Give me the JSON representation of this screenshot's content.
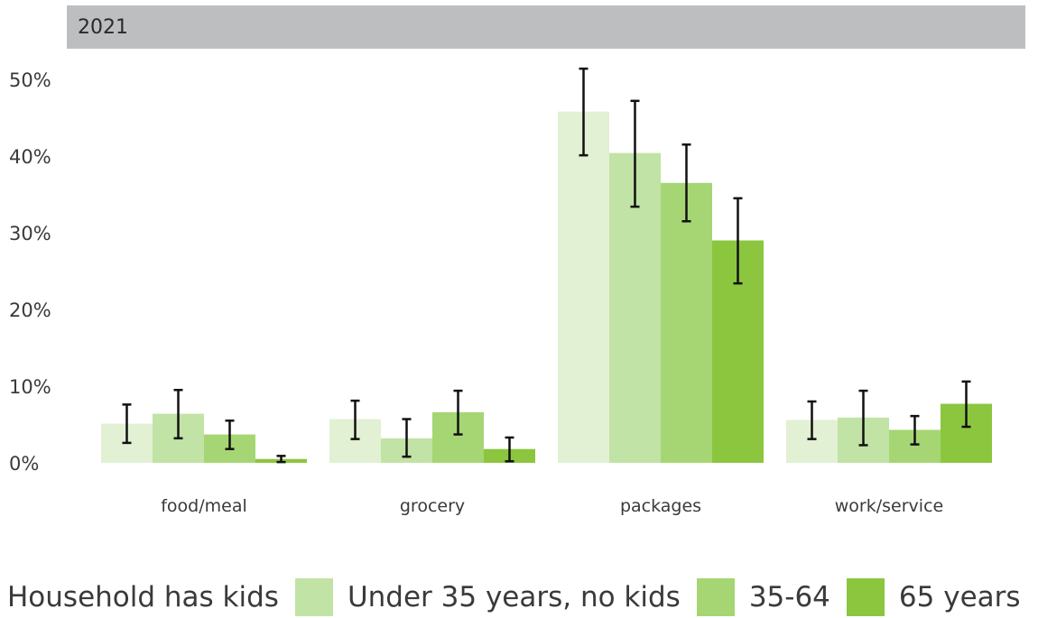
{
  "panel": {
    "title": "2021"
  },
  "legend": {
    "first_label": "Household has kids",
    "items": [
      {
        "label": "Under 35 years, no kids",
        "color": "#c1e3a5"
      },
      {
        "label": "35-64",
        "color": "#a6d673"
      },
      {
        "label": "65 years",
        "color": "#8cc63f"
      }
    ]
  },
  "chart_data": {
    "type": "bar",
    "title": "2021",
    "categories": [
      "food/meal",
      "grocery",
      "packages",
      "work/service"
    ],
    "ylim": [
      0,
      52
    ],
    "yticks": [
      0,
      10,
      20,
      30,
      40,
      50
    ],
    "ytick_labels": [
      "0%",
      "10%",
      "20%",
      "30%",
      "40%",
      "50%"
    ],
    "grid": false,
    "legend_position": "bottom",
    "series": [
      {
        "name": "Household has kids",
        "color": "#e2f0d4",
        "values": [
          5.1,
          5.7,
          45.8,
          5.6
        ],
        "err_low": [
          2.6,
          3.1,
          40.1,
          3.1
        ],
        "err_high": [
          7.6,
          8.1,
          51.4,
          8.0
        ]
      },
      {
        "name": "Under 35 years, no kids",
        "color": "#c1e3a5",
        "values": [
          6.4,
          3.2,
          40.4,
          5.9
        ],
        "err_low": [
          3.2,
          0.8,
          33.4,
          2.3
        ],
        "err_high": [
          9.5,
          5.7,
          47.2,
          9.4
        ]
      },
      {
        "name": "35-64",
        "color": "#a6d673",
        "values": [
          3.7,
          6.6,
          36.5,
          4.3
        ],
        "err_low": [
          1.8,
          3.7,
          31.5,
          2.4
        ],
        "err_high": [
          5.5,
          9.4,
          41.5,
          6.1
        ]
      },
      {
        "name": "65 years",
        "color": "#8cc63f",
        "values": [
          0.5,
          1.8,
          29.0,
          7.7
        ],
        "err_low": [
          0.1,
          0.2,
          23.4,
          4.7
        ],
        "err_high": [
          0.9,
          3.3,
          34.5,
          10.6
        ]
      }
    ]
  }
}
